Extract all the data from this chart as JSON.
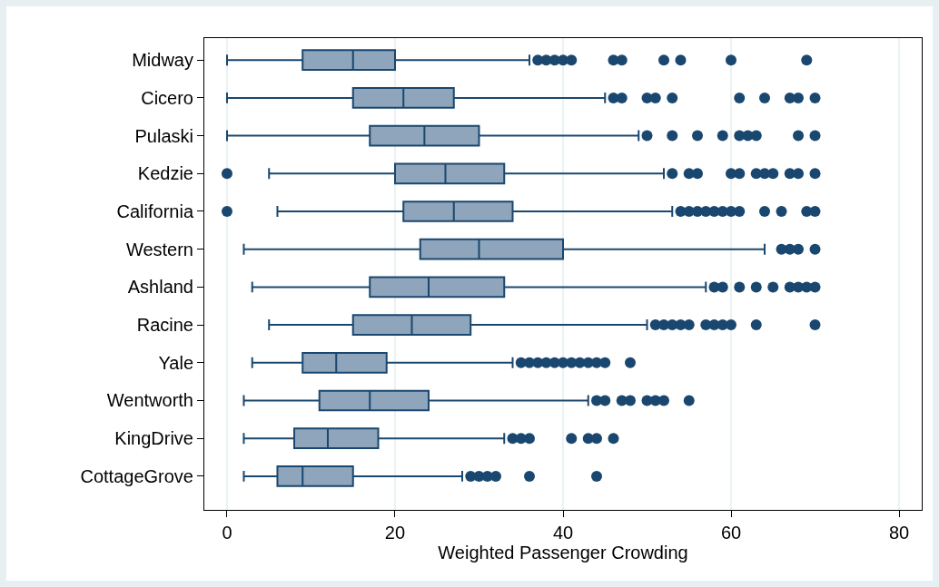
{
  "chart_data": {
    "type": "box",
    "orientation": "horizontal",
    "xlabel": "Weighted Passenger Crowding",
    "color": "#8ea5bb",
    "marker": "circle",
    "grid": "x",
    "xlim": [
      -2.7,
      82.7
    ],
    "xticks": [
      0,
      20,
      40,
      60,
      80
    ],
    "categories": [
      "Midway",
      "Cicero",
      "Pulaski",
      "Kedzie",
      "California",
      "Western",
      "Ashland",
      "Racine",
      "Yale",
      "Wentworth",
      "KingDrive",
      "CottageGrove"
    ],
    "boxes": [
      {
        "low": 0,
        "q1": 9,
        "median": 15,
        "q3": 20,
        "high": 36,
        "outliers": [
          37,
          38,
          39,
          40,
          41,
          46,
          47,
          52,
          54,
          60,
          69
        ]
      },
      {
        "low": 0,
        "q1": 15,
        "median": 21,
        "q3": 27,
        "high": 45,
        "outliers": [
          46,
          47,
          50,
          51,
          53,
          61,
          64,
          67,
          68,
          70
        ]
      },
      {
        "low": 0,
        "q1": 17,
        "median": 23.5,
        "q3": 30,
        "high": 49,
        "outliers": [
          50,
          53,
          56,
          59,
          61,
          62,
          63,
          68,
          70
        ]
      },
      {
        "low": 5,
        "q1": 20,
        "median": 26,
        "q3": 33,
        "high": 52,
        "outliers": [
          0,
          53,
          55,
          56,
          60,
          61,
          63,
          64,
          65,
          67,
          68,
          70
        ]
      },
      {
        "low": 6,
        "q1": 21,
        "median": 27,
        "q3": 34,
        "high": 53,
        "outliers": [
          0,
          54,
          55,
          56,
          57,
          58,
          59,
          60,
          61,
          64,
          66,
          69,
          70
        ]
      },
      {
        "low": 2,
        "q1": 23,
        "median": 30,
        "q3": 40,
        "high": 64,
        "outliers": [
          66,
          67,
          68,
          70
        ]
      },
      {
        "low": 3,
        "q1": 17,
        "median": 24,
        "q3": 33,
        "high": 57,
        "outliers": [
          58,
          59,
          61,
          63,
          65,
          67,
          68,
          69,
          70
        ]
      },
      {
        "low": 5,
        "q1": 15,
        "median": 22,
        "q3": 29,
        "high": 50,
        "outliers": [
          51,
          52,
          53,
          54,
          55,
          57,
          58,
          59,
          60,
          63,
          70
        ]
      },
      {
        "low": 3,
        "q1": 9,
        "median": 13,
        "q3": 19,
        "high": 34,
        "outliers": [
          35,
          36,
          37,
          38,
          39,
          40,
          41,
          42,
          43,
          44,
          45,
          48
        ]
      },
      {
        "low": 2,
        "q1": 11,
        "median": 17,
        "q3": 24,
        "high": 43,
        "outliers": [
          44,
          45,
          47,
          48,
          50,
          51,
          52,
          55
        ]
      },
      {
        "low": 2,
        "q1": 8,
        "median": 12,
        "q3": 18,
        "high": 33,
        "outliers": [
          34,
          35,
          36,
          41,
          43,
          44,
          46
        ]
      },
      {
        "low": 2,
        "q1": 6,
        "median": 9,
        "q3": 15,
        "high": 28,
        "outliers": [
          29,
          30,
          31,
          32,
          36,
          44
        ]
      }
    ]
  }
}
